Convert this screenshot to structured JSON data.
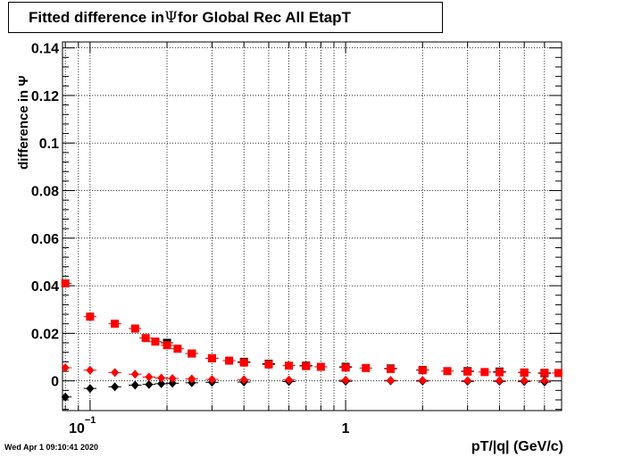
{
  "header": {
    "title_prefix": "Fitted difference in",
    "title_symbol": "Ψ",
    "title_suffix": "for Global Rec All EtapT"
  },
  "footer": {
    "timestamp": "Wed Apr  1 09:10:41 2020"
  },
  "chart_data": {
    "type": "scatter",
    "title": "Fitted difference in Ψ for Global Rec All EtapT",
    "xlabel": "pT/|q| (GeV/c)",
    "ylabel": "difference in Ψ",
    "xscale": "log",
    "xlim": [
      0.078,
      7.0
    ],
    "ylim": [
      -0.0125,
      0.1425
    ],
    "x_tick_labels": [
      {
        "value": 0.1,
        "base": "10",
        "exp": "−1"
      },
      {
        "value": 1,
        "base": "1",
        "exp": ""
      }
    ],
    "y_ticks": [
      0,
      0.02,
      0.04,
      0.06,
      0.08,
      0.1,
      0.12,
      0.14
    ],
    "y_tick_labels": [
      "0",
      "0.02",
      "0.04",
      "0.06",
      "0.08",
      "0.1",
      "0.12",
      "0.14"
    ],
    "grid": true,
    "series": [
      {
        "color": "#000000",
        "marker": "diamond",
        "points": [
          [
            0.08,
            -0.0068
          ],
          [
            0.1,
            -0.0032
          ],
          [
            0.125,
            -0.0025
          ],
          [
            0.15,
            -0.0018
          ],
          [
            0.17,
            -0.0015
          ],
          [
            0.19,
            -0.0012
          ],
          [
            0.21,
            -0.001
          ],
          [
            0.25,
            -0.0008
          ],
          [
            0.3,
            -0.0006
          ],
          [
            0.4,
            -0.0005
          ],
          [
            0.6,
            -0.0003
          ],
          [
            1.0,
            -0.0002
          ],
          [
            1.5,
            0.0
          ],
          [
            2.0,
            -0.0001
          ],
          [
            3.0,
            -0.0002
          ],
          [
            4.0,
            -0.0002
          ],
          [
            5.0,
            -0.0003
          ],
          [
            6.0,
            -0.0005
          ]
        ]
      },
      {
        "color": "#ff0000",
        "marker": "diamond",
        "points": [
          [
            0.08,
            0.0055
          ],
          [
            0.1,
            0.0045
          ],
          [
            0.125,
            0.0035
          ],
          [
            0.15,
            0.0028
          ],
          [
            0.17,
            0.0016
          ],
          [
            0.19,
            0.0012
          ],
          [
            0.21,
            0.001
          ],
          [
            0.25,
            0.0008
          ],
          [
            0.3,
            0.0006
          ],
          [
            0.4,
            0.0005
          ],
          [
            0.6,
            0.0004
          ],
          [
            1.0,
            0.0003
          ],
          [
            1.5,
            0.0002
          ],
          [
            2.0,
            0.0002
          ],
          [
            3.0,
            0.0001
          ],
          [
            4.0,
            0.0001
          ],
          [
            5.0,
            0.0001
          ],
          [
            6.0,
            0.0001
          ]
        ]
      },
      {
        "color": "#000000",
        "marker": "square",
        "points": [
          [
            0.2,
            0.016
          ],
          [
            0.25,
            0.0115
          ],
          [
            0.3,
            0.0095
          ],
          [
            0.4,
            0.008
          ],
          [
            0.5,
            0.0072
          ],
          [
            0.7,
            0.0064
          ],
          [
            1.0,
            0.0059
          ],
          [
            1.5,
            0.0052
          ],
          [
            2.0,
            0.0046
          ],
          [
            3.0,
            0.0041
          ],
          [
            4.0,
            0.0039
          ],
          [
            5.0,
            0.0035
          ],
          [
            6.0,
            0.0032
          ]
        ]
      },
      {
        "color": "#ff0000",
        "marker": "square",
        "points": [
          [
            0.08,
            0.041
          ],
          [
            0.1,
            0.027
          ],
          [
            0.125,
            0.024
          ],
          [
            0.15,
            0.022
          ],
          [
            0.165,
            0.018
          ],
          [
            0.18,
            0.0165
          ],
          [
            0.2,
            0.015
          ],
          [
            0.22,
            0.0135
          ],
          [
            0.25,
            0.0115
          ],
          [
            0.3,
            0.0095
          ],
          [
            0.35,
            0.0085
          ],
          [
            0.4,
            0.0077
          ],
          [
            0.5,
            0.0069
          ],
          [
            0.6,
            0.0064
          ],
          [
            0.7,
            0.0062
          ],
          [
            0.8,
            0.0059
          ],
          [
            1.0,
            0.0056
          ],
          [
            1.2,
            0.0054
          ],
          [
            1.5,
            0.005
          ],
          [
            2.0,
            0.0045
          ],
          [
            2.5,
            0.0041
          ],
          [
            3.0,
            0.0039
          ],
          [
            3.5,
            0.0037
          ],
          [
            4.0,
            0.0036
          ],
          [
            5.0,
            0.0035
          ],
          [
            6.0,
            0.0034
          ],
          [
            6.8,
            0.0033
          ]
        ]
      }
    ]
  }
}
